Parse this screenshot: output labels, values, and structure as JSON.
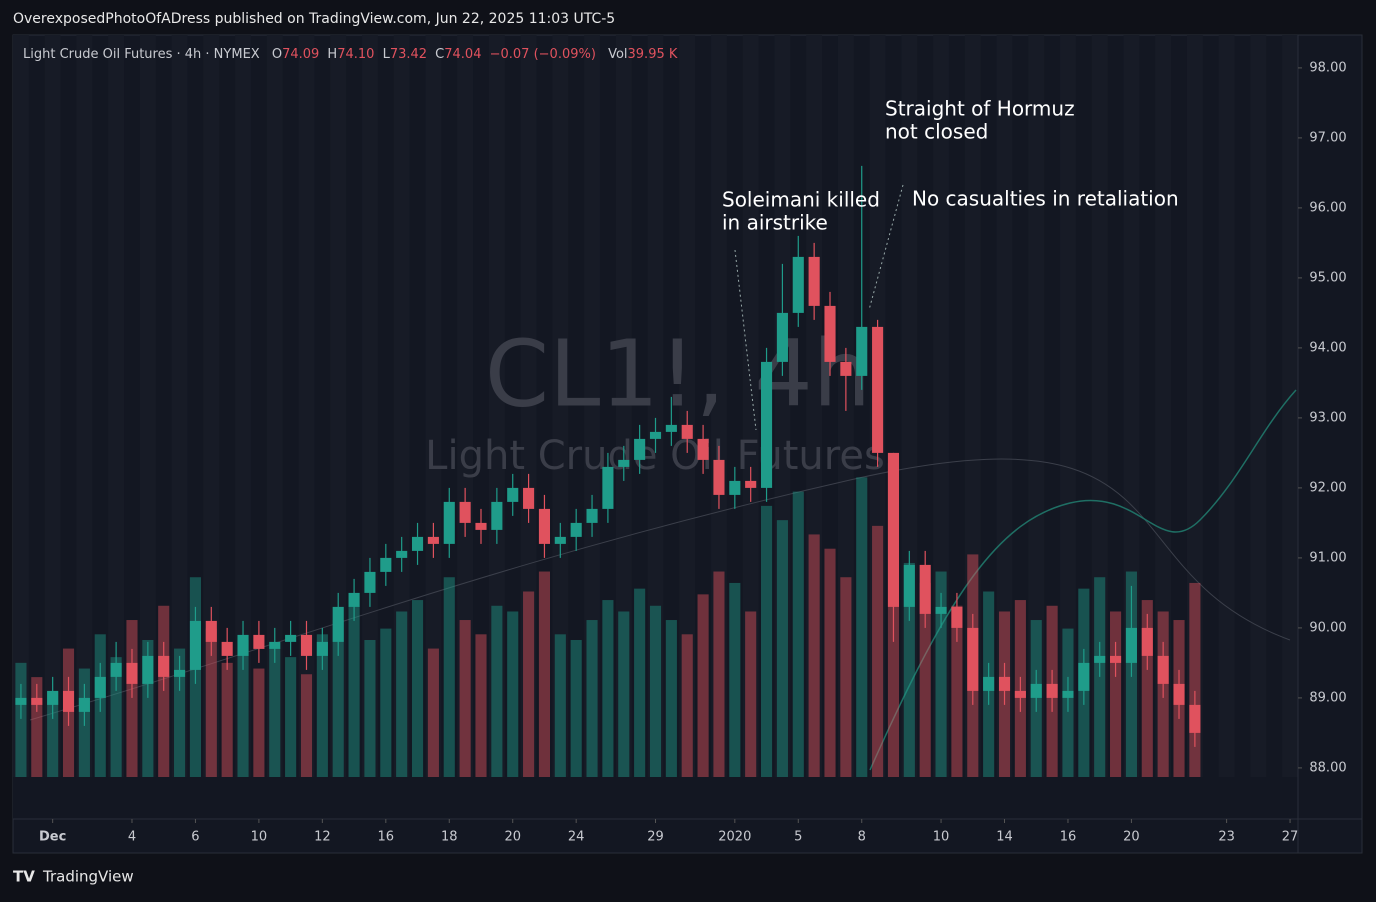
{
  "header": {
    "title": "OverexposedPhotoOfADress published on TradingView.com, Jun 22, 2025 11:03 UTC-5"
  },
  "footer": {
    "brand": "TradingView"
  },
  "chart_data": {
    "type": "candlestick",
    "symbol": "Light Crude Oil Futures · 4h · NYMEX",
    "legend": {
      "o_label": "O",
      "o": "74.09",
      "h_label": "H",
      "h": "74.10",
      "l_label": "L",
      "l": "73.42",
      "c_label": "C",
      "c": "74.04",
      "change": "−0.07 (−0.09%)",
      "vol_label": "Vol",
      "vol": "39.95 K"
    },
    "watermark": {
      "ticker": "CL1!, 4h",
      "name": "Light Crude Oil Futures"
    },
    "annotations": [
      "Soleimani killed",
      "in airstrike",
      "Straight of Hormuz",
      "not closed",
      "No casualties in retaliation"
    ],
    "up_color": "#1f9c8a",
    "down_color": "#e0525e",
    "x": [
      0,
      1,
      2,
      3,
      4,
      5,
      6,
      7,
      8,
      9,
      10,
      11,
      12,
      13,
      14,
      15,
      16,
      17,
      18,
      19,
      20,
      21,
      22,
      23,
      24,
      25,
      26,
      27,
      28,
      29,
      30,
      31,
      32,
      33,
      34,
      35,
      36,
      37,
      38,
      39,
      40,
      41,
      42,
      43,
      44,
      45,
      46,
      47,
      48,
      49,
      50,
      51,
      52,
      53,
      54,
      55,
      56,
      57,
      58,
      59,
      60,
      61,
      62,
      63,
      64,
      65,
      66,
      67,
      68,
      69,
      70,
      71,
      72,
      73,
      74
    ],
    "open": [
      88.9,
      89.0,
      88.9,
      89.1,
      88.8,
      89.0,
      89.3,
      89.5,
      89.2,
      89.6,
      89.3,
      89.4,
      90.1,
      89.8,
      89.6,
      89.9,
      89.7,
      89.8,
      89.9,
      89.6,
      89.8,
      90.3,
      90.5,
      90.8,
      91.0,
      91.1,
      91.3,
      91.2,
      91.8,
      91.5,
      91.4,
      91.8,
      92.0,
      91.7,
      91.2,
      91.3,
      91.5,
      91.7,
      92.3,
      92.4,
      92.7,
      92.8,
      92.9,
      92.7,
      92.4,
      91.9,
      92.1,
      92.0,
      93.8,
      94.5,
      95.3,
      94.6,
      93.8,
      93.6,
      94.3,
      92.5,
      90.3,
      90.9,
      90.2,
      90.3,
      90.0,
      89.1,
      89.3,
      89.1,
      89.0,
      89.2,
      89.0,
      89.1,
      89.5,
      89.6,
      89.5,
      90.0,
      89.6,
      89.2,
      88.9
    ],
    "close": [
      89.0,
      88.9,
      89.1,
      88.8,
      89.0,
      89.3,
      89.5,
      89.2,
      89.6,
      89.3,
      89.4,
      90.1,
      89.8,
      89.6,
      89.9,
      89.7,
      89.8,
      89.9,
      89.6,
      89.8,
      90.3,
      90.5,
      90.8,
      91.0,
      91.1,
      91.3,
      91.2,
      91.8,
      91.5,
      91.4,
      91.8,
      92.0,
      91.7,
      91.2,
      91.3,
      91.5,
      91.7,
      92.3,
      92.4,
      92.7,
      92.8,
      92.9,
      92.7,
      92.4,
      91.9,
      92.1,
      92.0,
      93.8,
      94.5,
      95.3,
      94.6,
      93.8,
      93.6,
      94.3,
      92.5,
      90.3,
      90.9,
      90.2,
      90.3,
      90.0,
      89.1,
      89.3,
      89.1,
      89.0,
      89.2,
      89.0,
      89.1,
      89.5,
      89.6,
      89.5,
      90.0,
      89.6,
      89.2,
      88.9,
      88.5
    ],
    "high": [
      89.2,
      89.2,
      89.3,
      89.3,
      89.2,
      89.5,
      89.8,
      89.7,
      89.8,
      89.8,
      89.6,
      90.3,
      90.3,
      90.0,
      90.1,
      90.1,
      90.0,
      90.1,
      90.1,
      90.0,
      90.5,
      90.7,
      91.0,
      91.2,
      91.3,
      91.5,
      91.5,
      92.0,
      92.0,
      91.7,
      92.0,
      92.2,
      92.2,
      91.9,
      91.5,
      91.7,
      91.9,
      92.5,
      92.6,
      92.9,
      93.0,
      93.3,
      93.1,
      92.9,
      92.6,
      92.3,
      92.3,
      94.0,
      95.2,
      95.6,
      95.5,
      94.8,
      94.0,
      96.6,
      94.4,
      92.5,
      91.1,
      91.1,
      90.5,
      90.5,
      90.2,
      89.5,
      89.5,
      89.3,
      89.4,
      89.4,
      89.3,
      89.7,
      89.8,
      89.8,
      90.6,
      90.2,
      89.8,
      89.4,
      89.1
    ],
    "low": [
      88.7,
      88.8,
      88.7,
      88.6,
      88.6,
      88.8,
      89.1,
      89.0,
      89.0,
      89.1,
      89.1,
      89.2,
      89.6,
      89.4,
      89.4,
      89.5,
      89.5,
      89.6,
      89.4,
      89.4,
      89.6,
      90.1,
      90.3,
      90.6,
      90.8,
      90.9,
      91.0,
      91.0,
      91.3,
      91.2,
      91.2,
      91.6,
      91.5,
      91.0,
      91.0,
      91.1,
      91.3,
      91.5,
      92.1,
      92.2,
      92.5,
      92.6,
      92.5,
      92.2,
      91.7,
      91.7,
      91.8,
      91.8,
      93.6,
      94.3,
      94.4,
      93.6,
      93.1,
      93.4,
      92.3,
      89.8,
      90.1,
      90.0,
      90.0,
      89.8,
      88.9,
      88.9,
      88.9,
      88.8,
      88.8,
      88.8,
      88.8,
      88.9,
      89.3,
      89.3,
      89.3,
      89.4,
      89.0,
      88.7,
      88.3
    ],
    "volume": [
      40,
      35,
      30,
      45,
      38,
      50,
      42,
      55,
      48,
      60,
      45,
      70,
      52,
      40,
      48,
      38,
      45,
      42,
      36,
      50,
      55,
      60,
      48,
      52,
      58,
      62,
      45,
      70,
      55,
      50,
      60,
      58,
      65,
      72,
      50,
      48,
      55,
      62,
      58,
      66,
      60,
      55,
      50,
      64,
      72,
      68,
      58,
      95,
      90,
      100,
      85,
      80,
      70,
      105,
      88,
      110,
      75,
      68,
      72,
      60,
      78,
      65,
      58,
      62,
      55,
      60,
      52,
      66,
      70,
      58,
      72,
      62,
      58,
      55,
      68
    ],
    "xlim": [
      -0.5,
      80.5
    ],
    "xticks": [
      {
        "value": 2,
        "label": "Dec"
      },
      {
        "value": 7,
        "label": "4"
      },
      {
        "value": 11,
        "label": "6"
      },
      {
        "value": 15,
        "label": "10"
      },
      {
        "value": 19,
        "label": "12"
      },
      {
        "value": 23,
        "label": "16"
      },
      {
        "value": 27,
        "label": "18"
      },
      {
        "value": 31,
        "label": "20"
      },
      {
        "value": 35,
        "label": "24"
      },
      {
        "value": 40,
        "label": "29"
      },
      {
        "value": 45,
        "label": "2020"
      },
      {
        "value": 49,
        "label": "5"
      },
      {
        "value": 53,
        "label": "8"
      },
      {
        "value": 58,
        "label": "10"
      },
      {
        "value": 62,
        "label": "14"
      },
      {
        "value": 66,
        "label": "16"
      },
      {
        "value": 70,
        "label": "20"
      },
      {
        "value": 76,
        "label": "23"
      },
      {
        "value": 80,
        "label": "27"
      }
    ],
    "ylim": [
      87.87,
      98.47
    ],
    "yticks": [
      {
        "value": 88,
        "label": "88.00"
      },
      {
        "value": 89,
        "label": "89.00"
      },
      {
        "value": 90,
        "label": "90.00"
      },
      {
        "value": 91,
        "label": "91.00"
      },
      {
        "value": 92,
        "label": "92.00"
      },
      {
        "value": 93,
        "label": "93.00"
      },
      {
        "value": 94,
        "label": "94.00"
      },
      {
        "value": 95,
        "label": "95.00"
      },
      {
        "value": 96,
        "label": "96.00"
      },
      {
        "value": 97,
        "label": "97.00"
      },
      {
        "value": 98,
        "label": "98.00"
      }
    ],
    "y2lim": [
      0,
      260
    ]
  }
}
